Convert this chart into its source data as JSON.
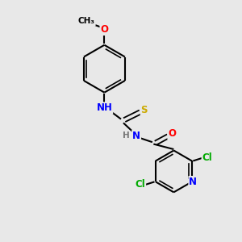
{
  "background_color": "#e8e8e8",
  "bond_color": "#000000",
  "atom_colors": {
    "N": "#0000ff",
    "O": "#ff0000",
    "S": "#ccaa00",
    "Cl": "#00aa00",
    "C": "#000000",
    "H": "#777777"
  },
  "font_size": 8.5,
  "figsize": [
    3.0,
    3.0
  ],
  "dpi": 100,
  "xlim": [
    0,
    10
  ],
  "ylim": [
    0,
    10
  ]
}
